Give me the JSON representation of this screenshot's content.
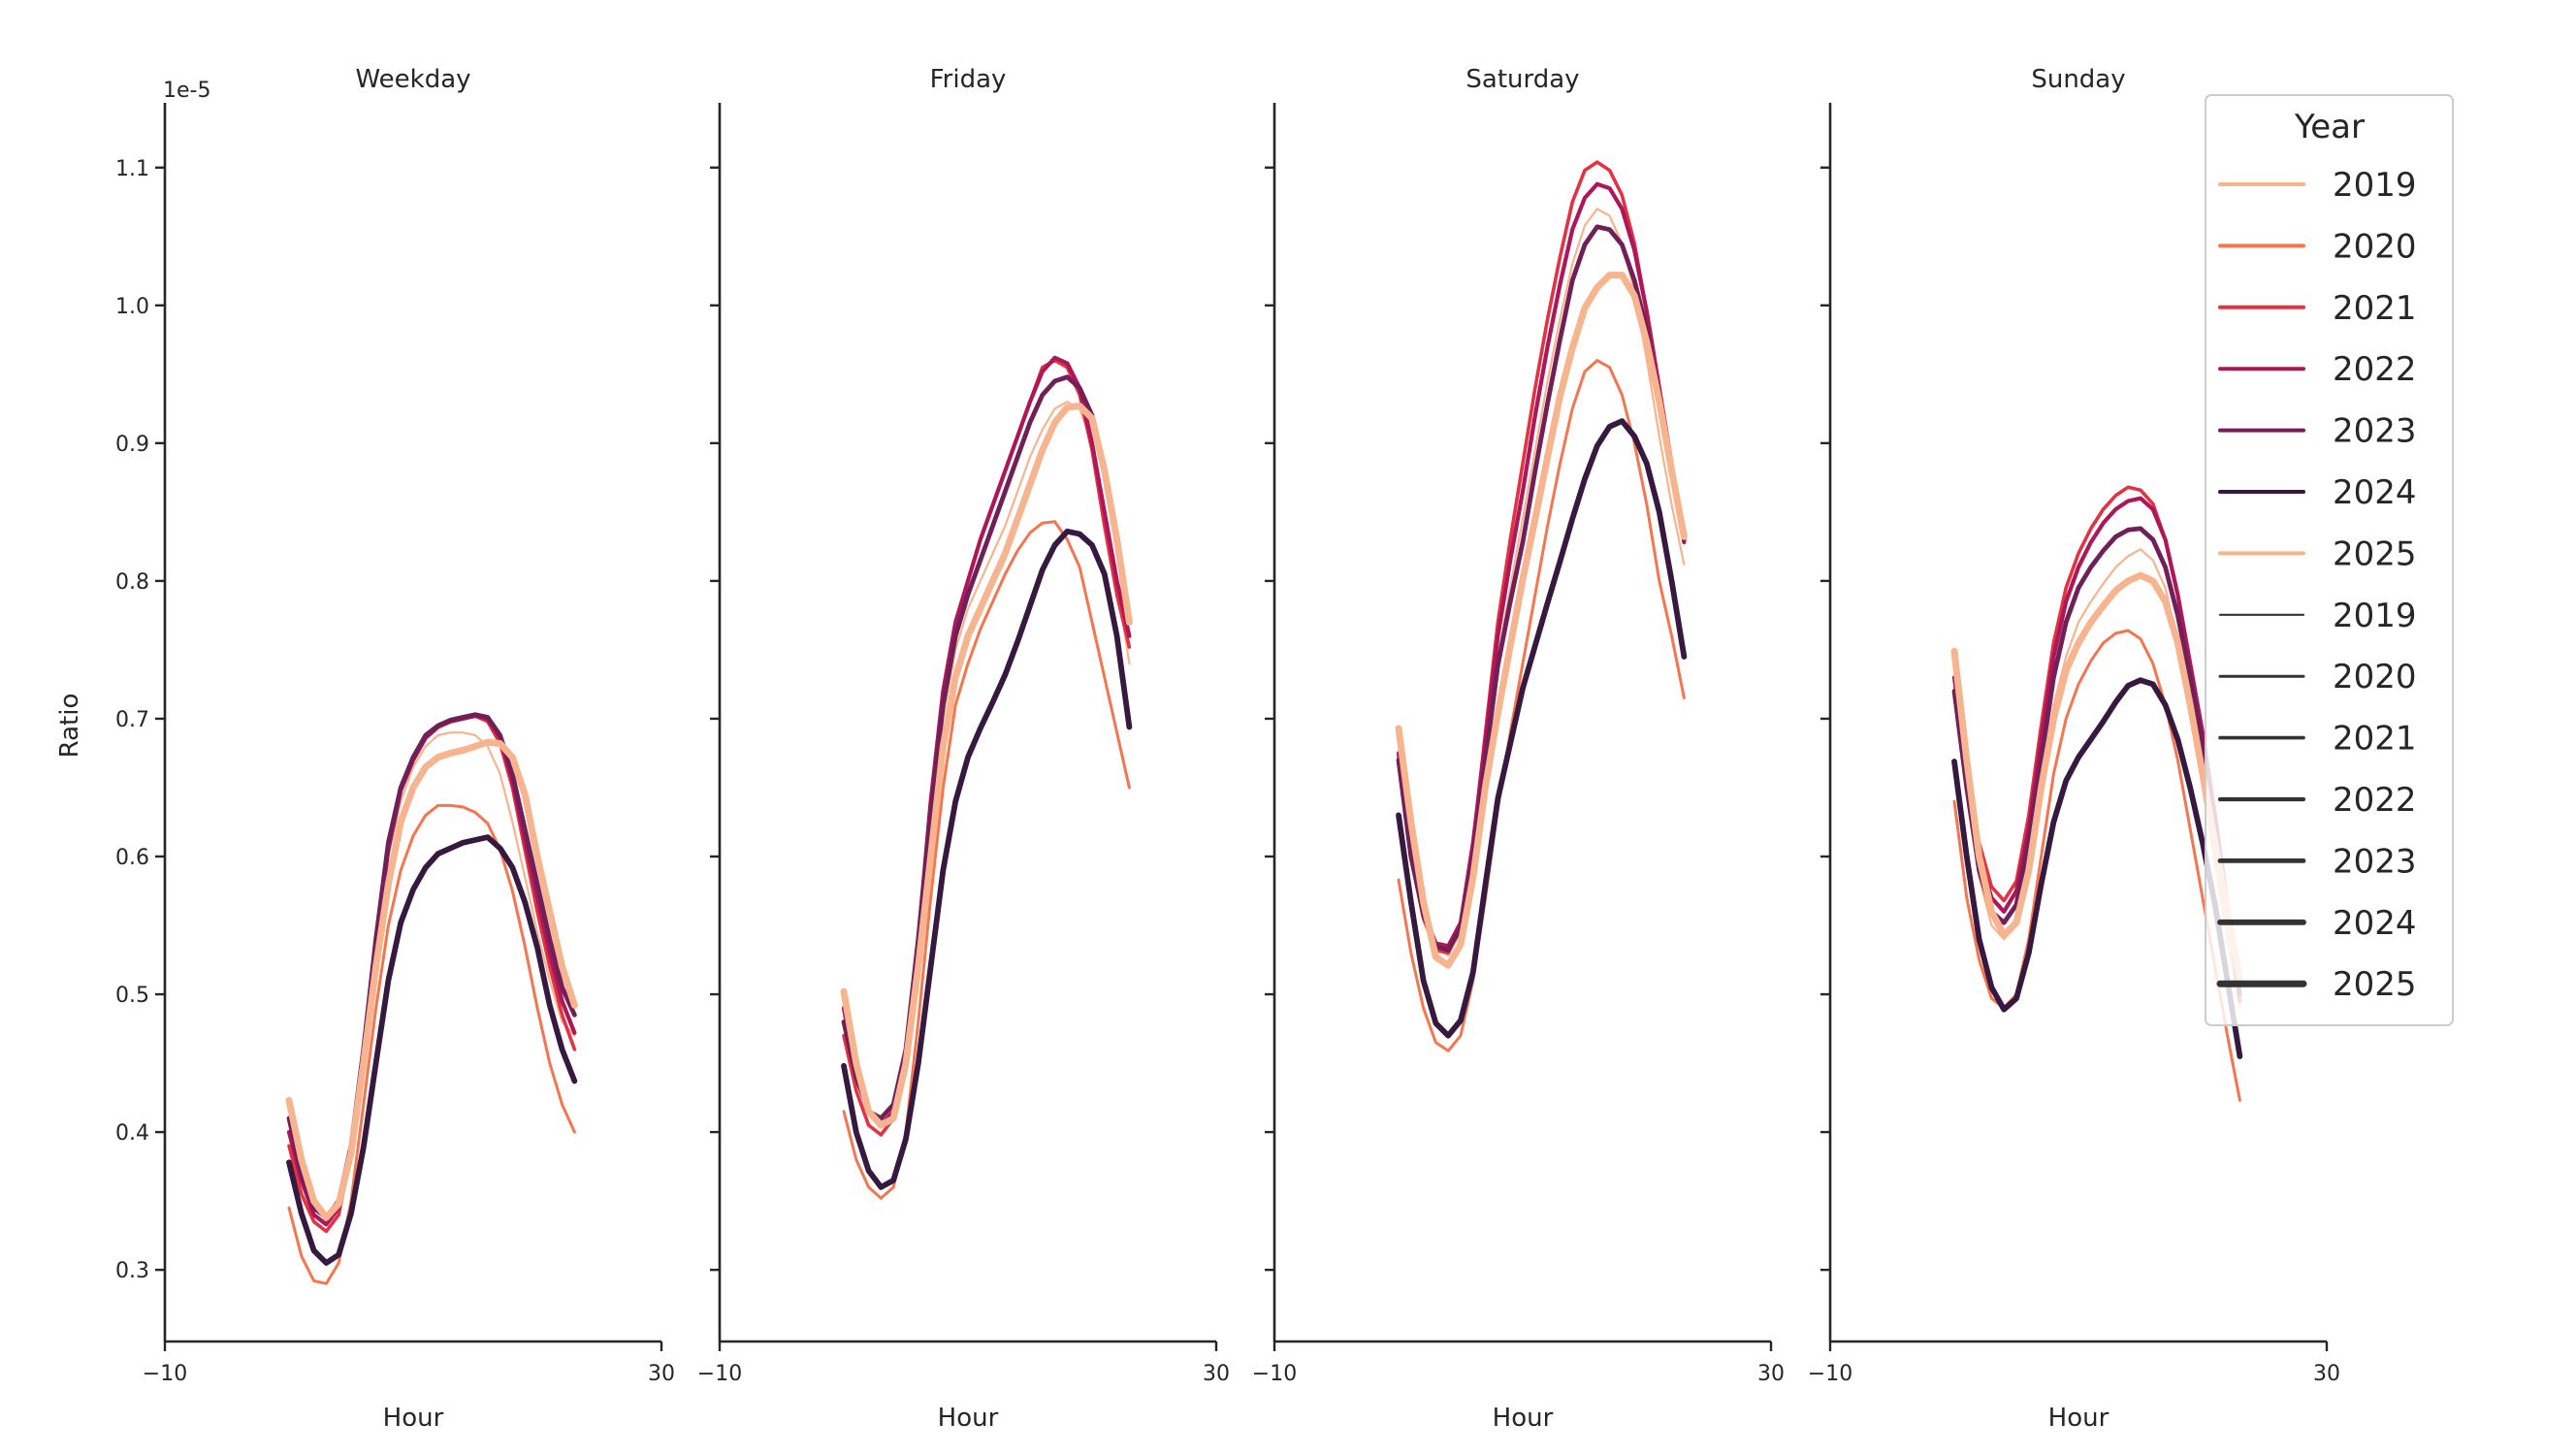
{
  "figure": {
    "offset_text": "1e-5",
    "ylabel": "Ratio",
    "legend": {
      "title": "Year",
      "placement": "top-right",
      "hue_entries": [
        "2019",
        "2020",
        "2021",
        "2022",
        "2023",
        "2024",
        "2025"
      ],
      "size_entries": [
        "2019",
        "2020",
        "2021",
        "2022",
        "2023",
        "2024",
        "2025"
      ],
      "size_color": "#333333"
    },
    "colors": {
      "2019": "#f6b48f",
      "2020": "#f37651",
      "2021": "#e13342",
      "2022": "#ad1759",
      "2023": "#701f57",
      "2024": "#35193e",
      "2025": "#f6b48f"
    }
  },
  "chart_data": [
    {
      "type": "line",
      "title": "Weekday",
      "xlabel": "Hour",
      "ylabel": "Ratio",
      "xlim": [
        -10,
        30
      ],
      "ylim": [
        0.248,
        1.147
      ],
      "y_scale_note": "1e-5",
      "xticks": [
        "−10",
        "30"
      ],
      "yticks": [
        "0.3",
        "0.4",
        "0.5",
        "0.6",
        "0.7",
        "0.8",
        "0.9",
        "1.0",
        "1.1"
      ],
      "grid": false,
      "x": [
        0,
        1,
        2,
        3,
        4,
        5,
        6,
        7,
        8,
        9,
        10,
        11,
        12,
        13,
        14,
        15,
        16,
        17,
        18,
        19,
        20,
        21,
        22,
        23
      ],
      "series": [
        {
          "name": "2019",
          "values": [
            0.4,
            0.365,
            0.345,
            0.34,
            0.35,
            0.39,
            0.46,
            0.53,
            0.6,
            0.64,
            0.665,
            0.68,
            0.688,
            0.69,
            0.69,
            0.688,
            0.68,
            0.66,
            0.625,
            0.585,
            0.545,
            0.51,
            0.48,
            0.47
          ]
        },
        {
          "name": "2020",
          "values": [
            0.345,
            0.31,
            0.292,
            0.29,
            0.305,
            0.35,
            0.42,
            0.49,
            0.55,
            0.59,
            0.615,
            0.63,
            0.637,
            0.637,
            0.636,
            0.632,
            0.624,
            0.605,
            0.575,
            0.535,
            0.49,
            0.45,
            0.42,
            0.4
          ]
        },
        {
          "name": "2021",
          "values": [
            0.39,
            0.355,
            0.335,
            0.328,
            0.34,
            0.385,
            0.455,
            0.535,
            0.605,
            0.648,
            0.67,
            0.686,
            0.694,
            0.698,
            0.7,
            0.702,
            0.698,
            0.682,
            0.65,
            0.605,
            0.56,
            0.52,
            0.485,
            0.46
          ]
        },
        {
          "name": "2022",
          "values": [
            0.4,
            0.365,
            0.34,
            0.333,
            0.345,
            0.385,
            0.455,
            0.535,
            0.605,
            0.648,
            0.67,
            0.686,
            0.694,
            0.698,
            0.7,
            0.702,
            0.7,
            0.686,
            0.655,
            0.612,
            0.57,
            0.53,
            0.495,
            0.472
          ]
        },
        {
          "name": "2023",
          "values": [
            0.41,
            0.37,
            0.345,
            0.338,
            0.35,
            0.39,
            0.46,
            0.54,
            0.61,
            0.65,
            0.672,
            0.688,
            0.695,
            0.699,
            0.701,
            0.703,
            0.701,
            0.688,
            0.66,
            0.62,
            0.58,
            0.54,
            0.505,
            0.485
          ]
        },
        {
          "name": "2024",
          "values": [
            0.378,
            0.341,
            0.314,
            0.305,
            0.311,
            0.341,
            0.389,
            0.45,
            0.51,
            0.552,
            0.576,
            0.592,
            0.602,
            0.606,
            0.61,
            0.612,
            0.614,
            0.606,
            0.592,
            0.567,
            0.534,
            0.492,
            0.46,
            0.437
          ]
        },
        {
          "name": "2025",
          "values": [
            0.423,
            0.38,
            0.35,
            0.338,
            0.348,
            0.385,
            0.45,
            0.52,
            0.58,
            0.625,
            0.65,
            0.665,
            0.672,
            0.675,
            0.677,
            0.68,
            0.683,
            0.682,
            0.672,
            0.645,
            0.6,
            0.56,
            0.52,
            0.492
          ]
        }
      ]
    },
    {
      "type": "line",
      "title": "Friday",
      "xlabel": "Hour",
      "xlim": [
        -10,
        30
      ],
      "ylim": [
        0.248,
        1.147
      ],
      "xticks": [
        "−10",
        "30"
      ],
      "grid": false,
      "x": [
        0,
        1,
        2,
        3,
        4,
        5,
        6,
        7,
        8,
        9,
        10,
        11,
        12,
        13,
        14,
        15,
        16,
        17,
        18,
        19,
        20,
        21,
        22,
        23
      ],
      "series": [
        {
          "name": "2019",
          "values": [
            0.49,
            0.445,
            0.415,
            0.405,
            0.41,
            0.45,
            0.53,
            0.62,
            0.7,
            0.75,
            0.78,
            0.8,
            0.82,
            0.84,
            0.865,
            0.89,
            0.91,
            0.925,
            0.93,
            0.925,
            0.9,
            0.85,
            0.8,
            0.74
          ]
        },
        {
          "name": "2020",
          "values": [
            0.415,
            0.38,
            0.36,
            0.352,
            0.36,
            0.4,
            0.48,
            0.57,
            0.65,
            0.71,
            0.74,
            0.765,
            0.785,
            0.805,
            0.822,
            0.835,
            0.842,
            0.843,
            0.83,
            0.81,
            0.77,
            0.73,
            0.69,
            0.65
          ]
        },
        {
          "name": "2021",
          "values": [
            0.47,
            0.43,
            0.405,
            0.398,
            0.41,
            0.45,
            0.54,
            0.64,
            0.72,
            0.77,
            0.8,
            0.83,
            0.855,
            0.88,
            0.905,
            0.93,
            0.955,
            0.96,
            0.955,
            0.935,
            0.895,
            0.84,
            0.79,
            0.752
          ]
        },
        {
          "name": "2022",
          "values": [
            0.49,
            0.44,
            0.415,
            0.405,
            0.415,
            0.455,
            0.54,
            0.64,
            0.72,
            0.77,
            0.8,
            0.83,
            0.855,
            0.88,
            0.905,
            0.93,
            0.952,
            0.962,
            0.958,
            0.94,
            0.9,
            0.85,
            0.8,
            0.76
          ]
        },
        {
          "name": "2023",
          "values": [
            0.48,
            0.44,
            0.415,
            0.41,
            0.42,
            0.46,
            0.54,
            0.63,
            0.71,
            0.76,
            0.79,
            0.815,
            0.84,
            0.865,
            0.89,
            0.915,
            0.935,
            0.945,
            0.948,
            0.94,
            0.92,
            0.88,
            0.83,
            0.77
          ]
        },
        {
          "name": "2024",
          "values": [
            0.448,
            0.4,
            0.372,
            0.36,
            0.365,
            0.395,
            0.45,
            0.52,
            0.59,
            0.64,
            0.672,
            0.693,
            0.712,
            0.732,
            0.756,
            0.782,
            0.808,
            0.826,
            0.836,
            0.834,
            0.826,
            0.805,
            0.76,
            0.694
          ]
        },
        {
          "name": "2025",
          "values": [
            0.502,
            0.45,
            0.415,
            0.405,
            0.41,
            0.45,
            0.52,
            0.6,
            0.68,
            0.73,
            0.76,
            0.78,
            0.8,
            0.82,
            0.845,
            0.87,
            0.895,
            0.915,
            0.926,
            0.927,
            0.918,
            0.88,
            0.83,
            0.77
          ]
        }
      ]
    },
    {
      "type": "line",
      "title": "Saturday",
      "xlabel": "Hour",
      "xlim": [
        -10,
        30
      ],
      "ylim": [
        0.248,
        1.147
      ],
      "xticks": [
        "−10",
        "30"
      ],
      "grid": false,
      "x": [
        0,
        1,
        2,
        3,
        4,
        5,
        6,
        7,
        8,
        9,
        10,
        11,
        12,
        13,
        14,
        15,
        16,
        17,
        18,
        19,
        20,
        21,
        22,
        23
      ],
      "series": [
        {
          "name": "2019",
          "values": [
            0.68,
            0.61,
            0.56,
            0.535,
            0.528,
            0.545,
            0.6,
            0.675,
            0.745,
            0.795,
            0.845,
            0.895,
            0.945,
            0.99,
            1.03,
            1.058,
            1.07,
            1.065,
            1.045,
            1.01,
            0.96,
            0.905,
            0.855,
            0.812
          ]
        },
        {
          "name": "2020",
          "values": [
            0.583,
            0.53,
            0.49,
            0.465,
            0.459,
            0.47,
            0.51,
            0.57,
            0.635,
            0.69,
            0.74,
            0.79,
            0.84,
            0.885,
            0.925,
            0.952,
            0.96,
            0.955,
            0.935,
            0.9,
            0.855,
            0.8,
            0.76,
            0.715
          ]
        },
        {
          "name": "2021",
          "values": [
            0.67,
            0.6,
            0.555,
            0.532,
            0.53,
            0.55,
            0.61,
            0.69,
            0.77,
            0.83,
            0.885,
            0.94,
            0.99,
            1.035,
            1.075,
            1.098,
            1.104,
            1.098,
            1.08,
            1.045,
            0.995,
            0.935,
            0.88,
            0.83
          ]
        },
        {
          "name": "2022",
          "values": [
            0.675,
            0.605,
            0.56,
            0.537,
            0.535,
            0.552,
            0.61,
            0.685,
            0.76,
            0.815,
            0.865,
            0.92,
            0.97,
            1.015,
            1.055,
            1.078,
            1.088,
            1.085,
            1.07,
            1.04,
            0.995,
            0.94,
            0.885,
            0.828
          ]
        },
        {
          "name": "2023",
          "values": [
            0.67,
            0.6,
            0.558,
            0.535,
            0.532,
            0.548,
            0.6,
            0.67,
            0.739,
            0.785,
            0.828,
            0.88,
            0.929,
            0.975,
            1.018,
            1.044,
            1.057,
            1.055,
            1.044,
            1.018,
            0.982,
            0.93,
            0.88,
            0.83
          ]
        },
        {
          "name": "2024",
          "values": [
            0.63,
            0.567,
            0.51,
            0.479,
            0.47,
            0.481,
            0.516,
            0.58,
            0.642,
            0.682,
            0.722,
            0.753,
            0.784,
            0.814,
            0.845,
            0.874,
            0.898,
            0.912,
            0.916,
            0.905,
            0.885,
            0.85,
            0.8,
            0.745
          ]
        },
        {
          "name": "2025",
          "values": [
            0.693,
            0.625,
            0.567,
            0.527,
            0.521,
            0.536,
            0.585,
            0.651,
            0.704,
            0.753,
            0.801,
            0.845,
            0.89,
            0.934,
            0.969,
            0.998,
            1.013,
            1.022,
            1.022,
            1.007,
            0.973,
            0.93,
            0.88,
            0.832
          ]
        }
      ]
    },
    {
      "type": "line",
      "title": "Sunday",
      "xlabel": "Hour",
      "xlim": [
        -10,
        30
      ],
      "ylim": [
        0.248,
        1.147
      ],
      "xticks": [
        "−10",
        "30"
      ],
      "grid": false,
      "x": [
        0,
        1,
        2,
        3,
        4,
        5,
        6,
        7,
        8,
        9,
        10,
        11,
        12,
        13,
        14,
        15,
        16,
        17,
        18,
        19,
        20,
        21,
        22,
        23
      ],
      "series": [
        {
          "name": "2019",
          "values": [
            0.72,
            0.645,
            0.585,
            0.55,
            0.54,
            0.55,
            0.595,
            0.655,
            0.71,
            0.745,
            0.77,
            0.785,
            0.798,
            0.81,
            0.818,
            0.823,
            0.815,
            0.795,
            0.755,
            0.705,
            0.65,
            0.595,
            0.54,
            0.49
          ]
        },
        {
          "name": "2020",
          "values": [
            0.64,
            0.57,
            0.525,
            0.497,
            0.49,
            0.5,
            0.54,
            0.6,
            0.66,
            0.7,
            0.725,
            0.742,
            0.755,
            0.762,
            0.764,
            0.758,
            0.74,
            0.71,
            0.67,
            0.62,
            0.57,
            0.52,
            0.47,
            0.423
          ]
        },
        {
          "name": "2021",
          "values": [
            0.73,
            0.665,
            0.61,
            0.578,
            0.568,
            0.582,
            0.63,
            0.695,
            0.755,
            0.795,
            0.82,
            0.838,
            0.852,
            0.862,
            0.868,
            0.866,
            0.856,
            0.83,
            0.79,
            0.74,
            0.685,
            0.625,
            0.56,
            0.495
          ]
        },
        {
          "name": "2022",
          "values": [
            0.73,
            0.66,
            0.6,
            0.57,
            0.56,
            0.575,
            0.62,
            0.685,
            0.745,
            0.785,
            0.81,
            0.828,
            0.842,
            0.852,
            0.858,
            0.86,
            0.852,
            0.83,
            0.79,
            0.74,
            0.69,
            0.63,
            0.565,
            0.5
          ]
        },
        {
          "name": "2023",
          "values": [
            0.72,
            0.65,
            0.59,
            0.56,
            0.552,
            0.565,
            0.61,
            0.67,
            0.73,
            0.77,
            0.795,
            0.81,
            0.822,
            0.832,
            0.837,
            0.838,
            0.83,
            0.81,
            0.775,
            0.73,
            0.68,
            0.62,
            0.56,
            0.5
          ]
        },
        {
          "name": "2024",
          "values": [
            0.669,
            0.6,
            0.54,
            0.505,
            0.489,
            0.497,
            0.53,
            0.58,
            0.625,
            0.655,
            0.672,
            0.685,
            0.698,
            0.712,
            0.724,
            0.728,
            0.725,
            0.71,
            0.685,
            0.65,
            0.61,
            0.565,
            0.51,
            0.455
          ]
        },
        {
          "name": "2025",
          "values": [
            0.749,
            0.67,
            0.6,
            0.56,
            0.543,
            0.552,
            0.59,
            0.65,
            0.7,
            0.735,
            0.755,
            0.77,
            0.782,
            0.793,
            0.8,
            0.804,
            0.8,
            0.785,
            0.755,
            0.71,
            0.66,
            0.61,
            0.56,
            0.51
          ]
        }
      ]
    }
  ]
}
